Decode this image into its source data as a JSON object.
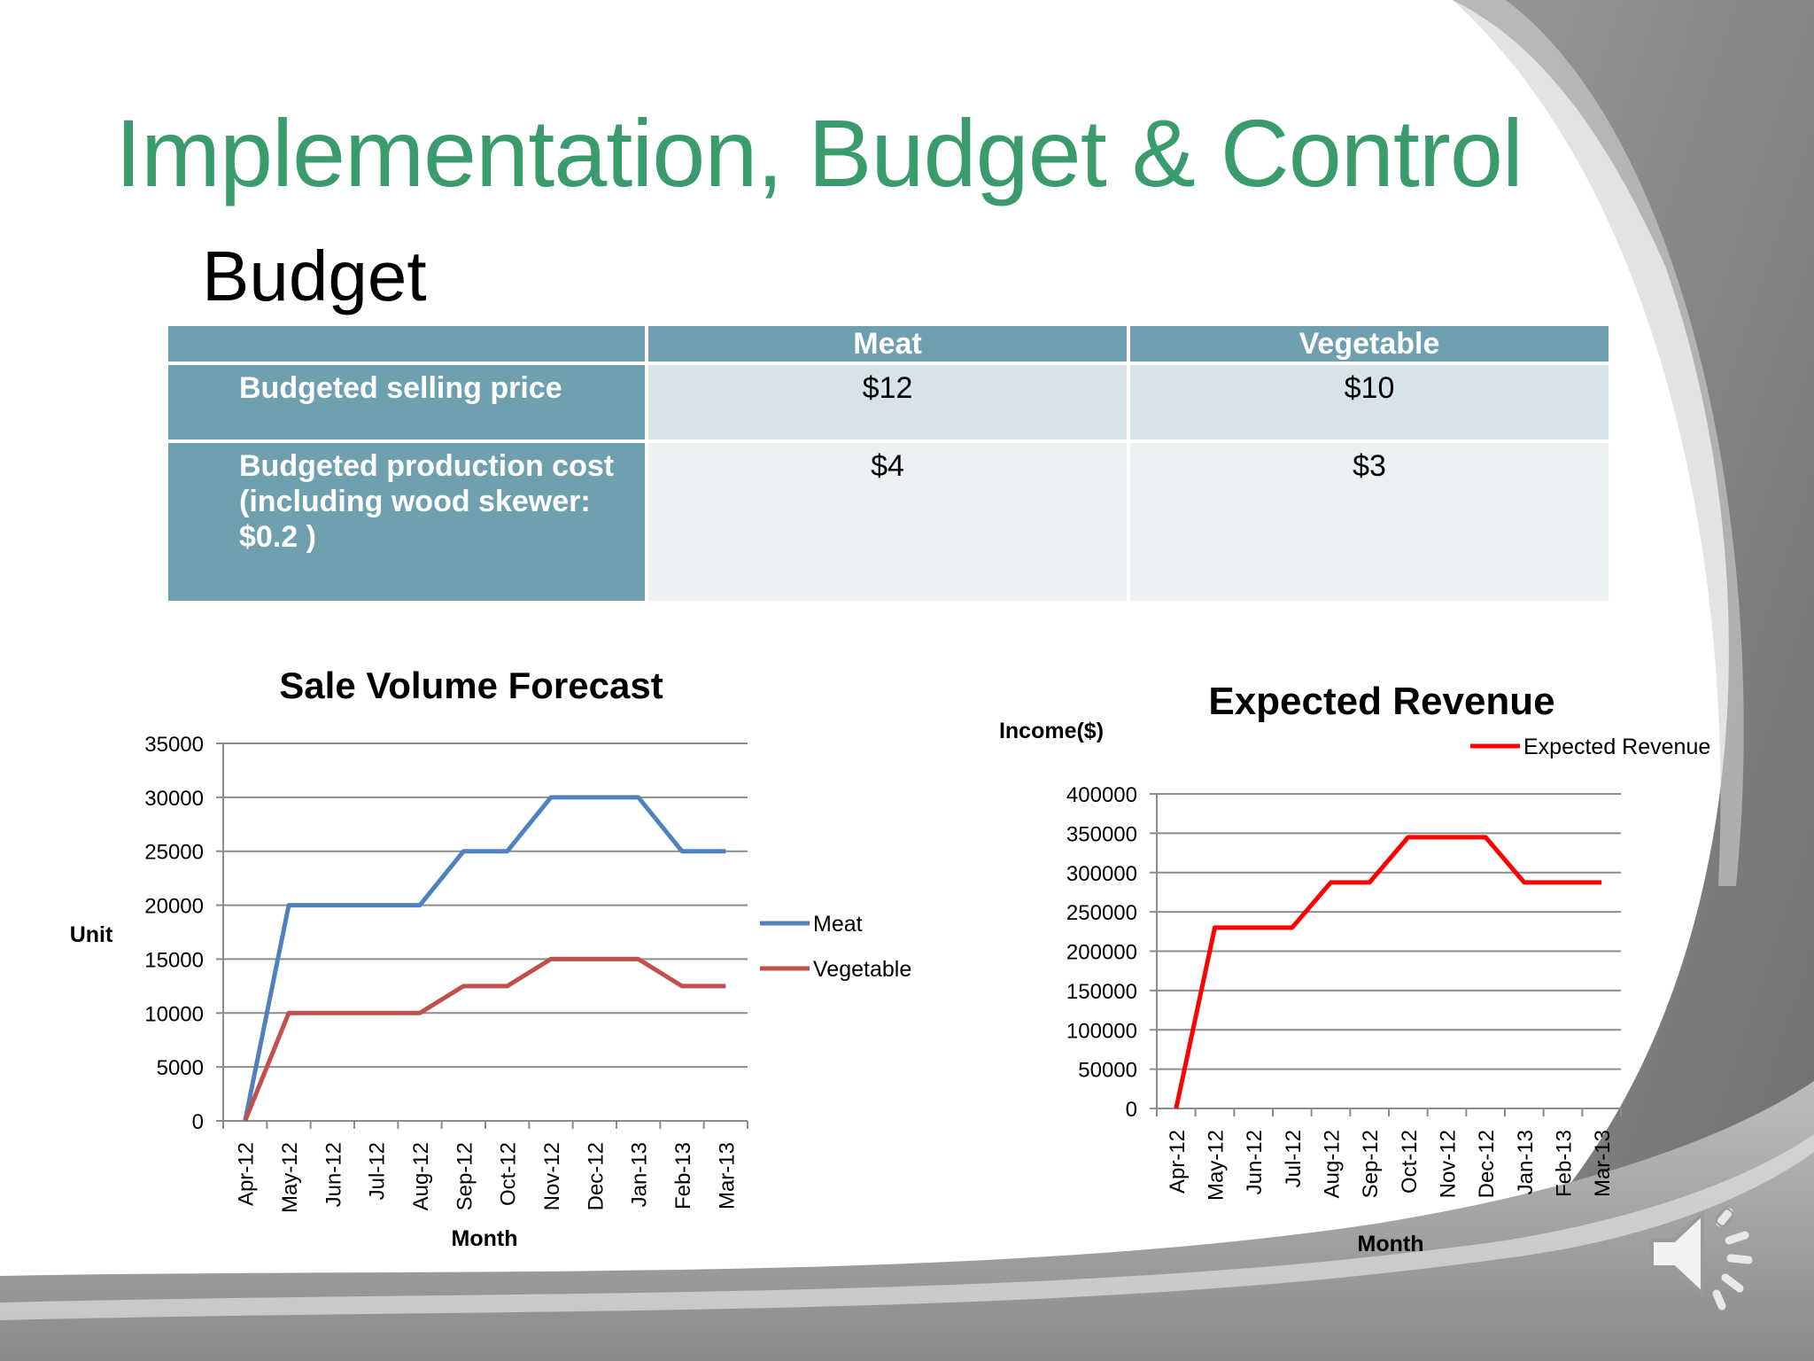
{
  "slide": {
    "title": "Implementation, Budget & Control",
    "subtitle": "Budget",
    "title_color": "#3a9c6d"
  },
  "budget_table": {
    "headers": [
      "",
      "Meat",
      "Vegetable"
    ],
    "rows": [
      {
        "label": "Budgeted selling price",
        "meat": "$12",
        "vegetable": "$10"
      },
      {
        "label": "Budgeted production cost (including wood skewer: $0.2 )",
        "meat": "$4",
        "vegetable": "$3"
      }
    ],
    "colors": {
      "header": "#6fa0b0",
      "row1": "#d6e3e8",
      "row2": "#ebf0f2"
    }
  },
  "chart_data": [
    {
      "type": "line",
      "title": "Sale Volume Forecast",
      "xlabel": "Month",
      "ylabel": "Unit",
      "categories": [
        "Apr-12",
        "May-12",
        "Jun-12",
        "Jul-12",
        "Aug-12",
        "Sep-12",
        "Oct-12",
        "Nov-12",
        "Dec-12",
        "Jan-13",
        "Feb-13",
        "Mar-13"
      ],
      "series": [
        {
          "name": "Meat",
          "color": "#4f81bd",
          "values": [
            0,
            20000,
            20000,
            20000,
            20000,
            25000,
            25000,
            30000,
            30000,
            30000,
            25000,
            25000
          ]
        },
        {
          "name": "Vegetable",
          "color": "#c0504d",
          "values": [
            0,
            10000,
            10000,
            10000,
            10000,
            12500,
            12500,
            15000,
            15000,
            15000,
            12500,
            12500
          ]
        }
      ],
      "ylim": [
        0,
        35000
      ],
      "yticks": [
        0,
        5000,
        10000,
        15000,
        20000,
        25000,
        30000,
        35000
      ],
      "grid": true,
      "legend": "right"
    },
    {
      "type": "line",
      "title": "Expected Revenue",
      "xlabel": "Month",
      "ylabel": "Income($)",
      "categories": [
        "Apr-12",
        "May-12",
        "Jun-12",
        "Jul-12",
        "Aug-12",
        "Sep-12",
        "Oct-12",
        "Nov-12",
        "Dec-12",
        "Jan-13",
        "Feb-13",
        "Mar-13"
      ],
      "series": [
        {
          "name": "Expected Revenue",
          "color": "#ff0000",
          "values": [
            0,
            230000,
            230000,
            230000,
            287500,
            287500,
            345000,
            345000,
            345000,
            287500,
            287500,
            287500
          ]
        }
      ],
      "ylim": [
        0,
        400000
      ],
      "yticks": [
        0,
        50000,
        100000,
        150000,
        200000,
        250000,
        300000,
        350000,
        400000
      ],
      "grid": true,
      "legend": "top-right"
    }
  ],
  "icons": {
    "speaker": "speaker-icon"
  }
}
